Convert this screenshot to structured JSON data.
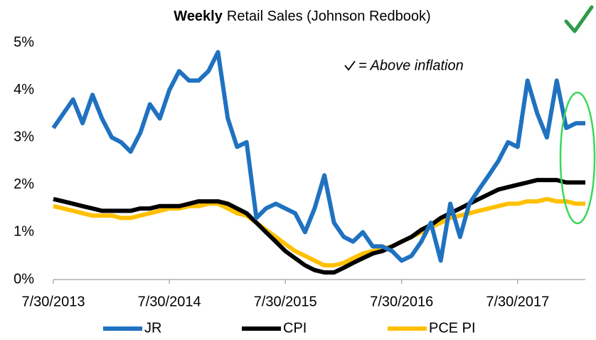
{
  "chart_data": {
    "type": "line",
    "title_parts": [
      "Weekly",
      "Retail Sales (Johnson Redbook)"
    ],
    "annotation": "= Above inflation",
    "x": [
      "7/30/2013",
      "8/30/2013",
      "9/30/2013",
      "10/30/2013",
      "11/30/2013",
      "12/30/2013",
      "1/30/2014",
      "2/28/2014",
      "3/30/2014",
      "4/30/2014",
      "5/30/2014",
      "6/30/2014",
      "7/30/2014",
      "8/30/2014",
      "9/30/2014",
      "10/30/2014",
      "11/30/2014",
      "12/30/2014",
      "1/30/2015",
      "2/28/2015",
      "3/30/2015",
      "4/30/2015",
      "5/30/2015",
      "6/30/2015",
      "7/30/2015",
      "8/30/2015",
      "9/30/2015",
      "10/30/2015",
      "11/30/2015",
      "12/30/2015",
      "1/30/2016",
      "2/28/2016",
      "3/30/2016",
      "4/30/2016",
      "5/30/2016",
      "6/30/2016",
      "7/30/2016",
      "8/30/2016",
      "9/30/2016",
      "10/30/2016",
      "11/30/2016",
      "12/30/2016",
      "1/30/2017",
      "2/28/2017",
      "3/30/2017",
      "4/30/2017",
      "5/30/2017",
      "6/30/2017",
      "7/30/2017",
      "8/30/2017",
      "9/30/2017",
      "10/30/2017",
      "11/30/2017",
      "12/30/2017",
      "1/30/2018",
      "2/28/2018"
    ],
    "series": [
      {
        "name": "JR",
        "color": "#1f72c0",
        "values": [
          3.2,
          3.5,
          3.8,
          3.3,
          3.9,
          3.4,
          3.0,
          2.9,
          2.7,
          3.1,
          3.7,
          3.4,
          4.0,
          4.4,
          4.2,
          4.2,
          4.4,
          4.8,
          3.4,
          2.8,
          2.9,
          1.3,
          1.5,
          1.6,
          1.5,
          1.4,
          1.0,
          1.5,
          2.2,
          1.2,
          0.9,
          0.8,
          1.0,
          0.7,
          0.7,
          0.6,
          0.4,
          0.5,
          0.8,
          1.2,
          0.4,
          1.6,
          0.9,
          1.6,
          1.9,
          2.2,
          2.5,
          2.9,
          2.8,
          4.2,
          3.5,
          3.0,
          4.2,
          3.2,
          3.3,
          3.3
        ]
      },
      {
        "name": "CPI",
        "color": "#000000",
        "values": [
          1.7,
          1.65,
          1.6,
          1.55,
          1.5,
          1.45,
          1.45,
          1.45,
          1.45,
          1.5,
          1.5,
          1.55,
          1.55,
          1.55,
          1.6,
          1.65,
          1.65,
          1.65,
          1.6,
          1.5,
          1.4,
          1.2,
          1.0,
          0.8,
          0.6,
          0.45,
          0.3,
          0.2,
          0.15,
          0.15,
          0.25,
          0.35,
          0.45,
          0.55,
          0.6,
          0.7,
          0.8,
          0.9,
          1.05,
          1.15,
          1.3,
          1.4,
          1.5,
          1.6,
          1.7,
          1.8,
          1.9,
          1.95,
          2.0,
          2.05,
          2.1,
          2.1,
          2.1,
          2.05,
          2.05,
          2.05
        ]
      },
      {
        "name": "PCE PI",
        "color": "#ffc000",
        "values": [
          1.55,
          1.5,
          1.45,
          1.4,
          1.35,
          1.35,
          1.35,
          1.3,
          1.3,
          1.35,
          1.4,
          1.45,
          1.5,
          1.5,
          1.55,
          1.55,
          1.6,
          1.6,
          1.5,
          1.4,
          1.35,
          1.2,
          1.05,
          0.9,
          0.75,
          0.6,
          0.5,
          0.4,
          0.3,
          0.3,
          0.35,
          0.45,
          0.55,
          0.6,
          0.65,
          0.7,
          0.8,
          0.9,
          1.0,
          1.1,
          1.2,
          1.3,
          1.35,
          1.4,
          1.45,
          1.5,
          1.55,
          1.6,
          1.6,
          1.65,
          1.65,
          1.7,
          1.65,
          1.65,
          1.6,
          1.6
        ]
      }
    ],
    "xlim": [
      "7/30/2013",
      "2/28/2018"
    ],
    "xticks": [
      "7/30/2013",
      "7/30/2014",
      "7/30/2015",
      "7/30/2016",
      "7/30/2017"
    ],
    "ylim": [
      0,
      5
    ],
    "yticks": [
      {
        "value": 0,
        "label": "0%"
      },
      {
        "value": 1,
        "label": "1%"
      },
      {
        "value": 2,
        "label": "2%"
      },
      {
        "value": 3,
        "label": "3%"
      },
      {
        "value": 4,
        "label": "4%"
      },
      {
        "value": 5,
        "label": "5%"
      }
    ],
    "legend": "bottom"
  }
}
